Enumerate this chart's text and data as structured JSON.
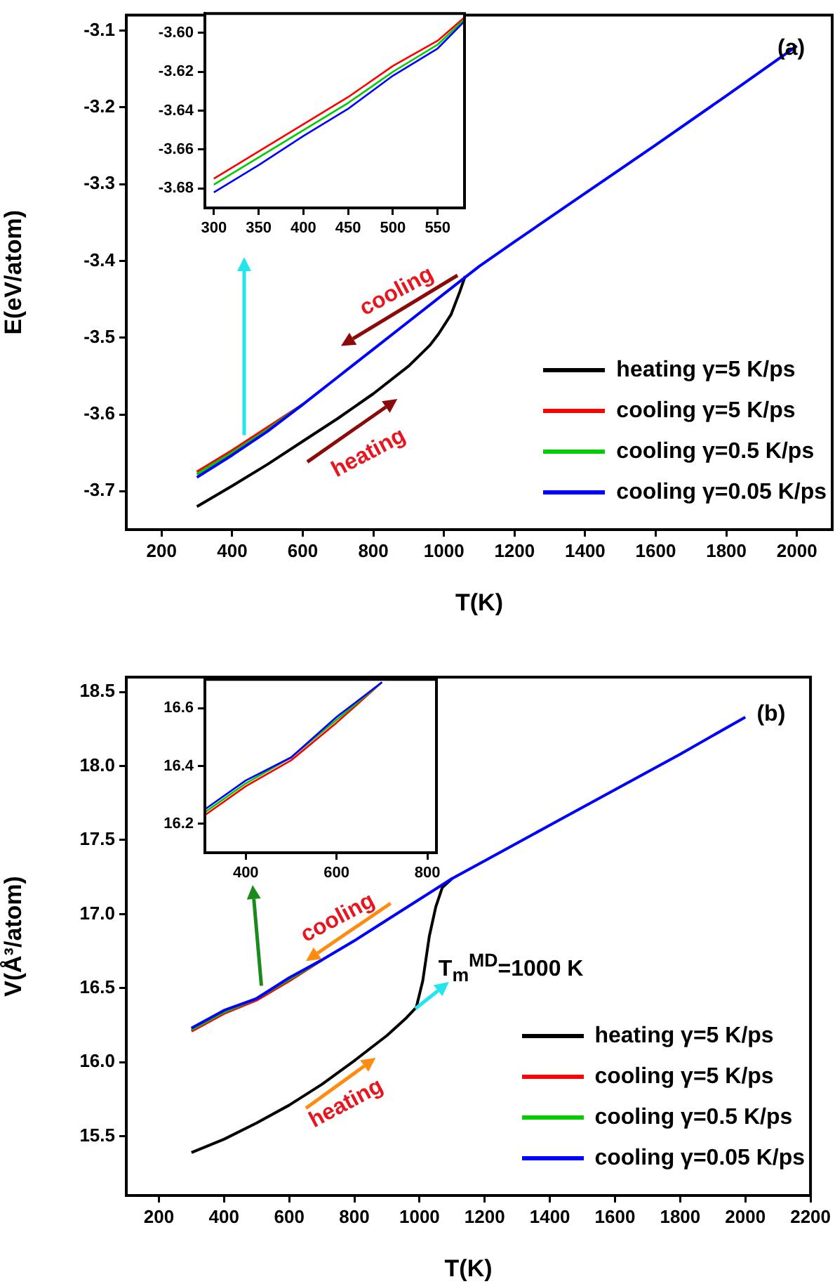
{
  "chart_data": [
    {
      "type": "line",
      "xlabel": "T(K)",
      "ylabel": "E(eV/atom)",
      "xlim": [
        100,
        2100
      ],
      "ylim": [
        -3.75,
        -3.08
      ],
      "xticks": [
        200,
        400,
        600,
        800,
        1000,
        1200,
        1400,
        1600,
        1800,
        2000
      ],
      "yticks": [
        -3.7,
        -3.6,
        -3.5,
        -3.4,
        -3.3,
        -3.2,
        -3.1
      ],
      "grid": false,
      "legend": "bottom right",
      "marker": "none",
      "line_style": "solid",
      "annotations": [
        "(a)",
        "cooling",
        "heating"
      ],
      "series": [
        {
          "name": "heating γ=5 K/ps",
          "color": "#000000",
          "x": [
            300,
            400,
            500,
            600,
            700,
            800,
            900,
            960,
            985,
            1020,
            1045,
            1060
          ],
          "values": [
            -3.72,
            -3.693,
            -3.665,
            -3.635,
            -3.605,
            -3.573,
            -3.537,
            -3.51,
            -3.495,
            -3.47,
            -3.44,
            -3.42
          ]
        },
        {
          "name": "cooling γ=5 K/ps",
          "color": "#ff0000",
          "x": [
            300,
            400,
            500,
            600
          ],
          "values": [
            -3.675,
            -3.647,
            -3.617,
            -3.587
          ]
        },
        {
          "name": "cooling γ=0.5 K/ps",
          "color": "#00cc00",
          "x": [
            300,
            400,
            500,
            600
          ],
          "values": [
            -3.678,
            -3.65,
            -3.62,
            -3.587
          ]
        },
        {
          "name": "cooling γ=0.05 K/ps",
          "color": "#0000ff",
          "x": [
            300,
            400,
            500,
            600,
            700,
            800,
            900,
            1000,
            1100,
            1200,
            1400,
            1600,
            1800,
            2000
          ],
          "values": [
            -3.682,
            -3.653,
            -3.622,
            -3.587,
            -3.551,
            -3.515,
            -3.479,
            -3.443,
            -3.407,
            -3.375,
            -3.312,
            -3.249,
            -3.185,
            -3.12
          ]
        }
      ]
    },
    {
      "type": "line",
      "xlim": [
        290,
        580
      ],
      "ylim": [
        -3.69,
        -3.59
      ],
      "xticks": [
        300,
        350,
        400,
        450,
        500,
        550
      ],
      "yticks": [
        {
          "value": -3.6,
          "label": "-3.60"
        },
        {
          "value": -3.62,
          "label": "-3.62"
        },
        {
          "value": -3.64,
          "label": "-3.64"
        },
        {
          "value": -3.66,
          "label": "-3.66"
        },
        {
          "value": -3.68,
          "label": "-3.68"
        }
      ],
      "grid": false,
      "marker": "none",
      "line_style": "solid",
      "series": [
        {
          "color": "#ff0000",
          "x": [
            300,
            350,
            400,
            450,
            500,
            550,
            580
          ],
          "values": [
            -3.675,
            -3.661,
            -3.647,
            -3.633,
            -3.617,
            -3.604,
            -3.592
          ]
        },
        {
          "color": "#00cc00",
          "x": [
            300,
            350,
            400,
            450,
            500,
            550,
            580
          ],
          "values": [
            -3.678,
            -3.664,
            -3.65,
            -3.636,
            -3.62,
            -3.606,
            -3.593
          ]
        },
        {
          "color": "#0000ff",
          "x": [
            300,
            350,
            400,
            450,
            500,
            550,
            580
          ],
          "values": [
            -3.682,
            -3.668,
            -3.653,
            -3.639,
            -3.622,
            -3.608,
            -3.594
          ]
        }
      ]
    },
    {
      "type": "line",
      "xlabel": "T(K)",
      "ylabel": "V(Å³/atom)",
      "xlim": [
        100,
        2200
      ],
      "ylim": [
        15.1,
        18.6
      ],
      "xticks": [
        200,
        400,
        600,
        800,
        1000,
        1200,
        1400,
        1600,
        1800,
        2000,
        2200
      ],
      "yticks": [
        15.5,
        {
          "value": 16,
          "label": "16.0"
        },
        16.5,
        {
          "value": 17,
          "label": "17.0"
        },
        17.5,
        {
          "value": 18,
          "label": "18.0"
        },
        18.5
      ],
      "grid": false,
      "legend": "bottom right",
      "marker": "none",
      "line_style": "solid",
      "annotations": [
        "(b)",
        "cooling",
        "heating",
        "T$_{m}$$^{MD}$=1000 K"
      ],
      "series": [
        {
          "name": "heating γ=5 K/ps",
          "color": "#000000",
          "x": [
            300,
            400,
            500,
            600,
            700,
            800,
            900,
            960,
            990,
            1010,
            1030,
            1050,
            1070,
            1100
          ],
          "values": [
            15.39,
            15.48,
            15.59,
            15.71,
            15.85,
            16.01,
            16.18,
            16.3,
            16.37,
            16.55,
            16.85,
            17.05,
            17.18,
            17.24
          ]
        },
        {
          "name": "cooling γ=5 K/ps",
          "color": "#ff0000",
          "x": [
            300,
            400,
            500,
            600,
            700
          ],
          "values": [
            16.21,
            16.33,
            16.42,
            16.55,
            16.69
          ]
        },
        {
          "name": "cooling γ=0.5 K/ps",
          "color": "#00cc00",
          "x": [
            300,
            400,
            500,
            600,
            700
          ],
          "values": [
            16.22,
            16.34,
            16.43,
            16.56,
            16.69
          ]
        },
        {
          "name": "cooling γ=0.05 K/ps",
          "color": "#0000ff",
          "x": [
            300,
            400,
            500,
            600,
            700,
            800,
            900,
            1000,
            1100,
            1200,
            1400,
            1600,
            1800,
            2000
          ],
          "values": [
            16.23,
            16.35,
            16.43,
            16.57,
            16.69,
            16.82,
            16.96,
            17.1,
            17.24,
            17.36,
            17.6,
            17.84,
            18.08,
            18.33
          ]
        }
      ]
    },
    {
      "type": "line",
      "xlim": [
        310,
        820
      ],
      "ylim": [
        16.1,
        16.7
      ],
      "xticks": [
        400,
        600,
        800
      ],
      "yticks": [
        16.2,
        16.4,
        16.6
      ],
      "grid": false,
      "marker": "none",
      "line_style": "solid",
      "series": [
        {
          "color": "#ff0000",
          "x": [
            310,
            400,
            500,
            600,
            700
          ],
          "values": [
            16.23,
            16.33,
            16.42,
            16.55,
            16.69
          ]
        },
        {
          "color": "#00cc00",
          "x": [
            310,
            400,
            500,
            600,
            700
          ],
          "values": [
            16.24,
            16.34,
            16.43,
            16.56,
            16.69
          ]
        },
        {
          "color": "#0000ff",
          "x": [
            310,
            400,
            500,
            600,
            700
          ],
          "values": [
            16.25,
            16.35,
            16.43,
            16.57,
            16.69
          ]
        }
      ]
    }
  ]
}
